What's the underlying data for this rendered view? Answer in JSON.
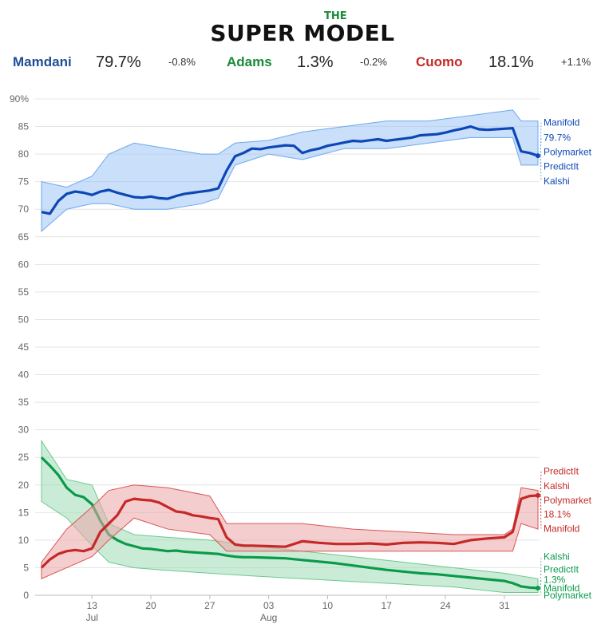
{
  "logo": {
    "the": "THE",
    "main": "SUPER MODEL"
  },
  "summary": [
    {
      "name": "Mamdani",
      "value": "79.7%",
      "change": "-0.8%",
      "color": "#1f4e96"
    },
    {
      "name": "Adams",
      "value": "1.3%",
      "change": "-0.2%",
      "color": "#1a8a3a"
    },
    {
      "name": "Cuomo",
      "value": "18.1%",
      "change": "+1.1%",
      "color": "#c62828"
    }
  ],
  "chart_data": {
    "type": "line",
    "y_unit": "%",
    "ylim": [
      0,
      92
    ],
    "yticks": [
      "0",
      "5",
      "10",
      "15",
      "20",
      "25",
      "30",
      "35",
      "40",
      "45",
      "50",
      "55",
      "60",
      "65",
      "70",
      "75",
      "80",
      "85",
      "90%"
    ],
    "xlim": [
      "2025-07-07",
      "2025-09-04"
    ],
    "xticks": [
      {
        "date": "2025-07-13",
        "day": "13",
        "month": "Jul"
      },
      {
        "date": "2025-07-20",
        "day": "20",
        "month": ""
      },
      {
        "date": "2025-07-27",
        "day": "27",
        "month": ""
      },
      {
        "date": "2025-08-03",
        "day": "03",
        "month": "Aug"
      },
      {
        "date": "2025-08-10",
        "day": "10",
        "month": ""
      },
      {
        "date": "2025-08-17",
        "day": "17",
        "month": ""
      },
      {
        "date": "2025-08-24",
        "day": "24",
        "month": ""
      },
      {
        "date": "2025-08-31",
        "day": "31",
        "month": ""
      }
    ],
    "grid": true,
    "series": [
      {
        "name": "Mamdani",
        "color": "#0d47b5",
        "band_color": "#9cc4f5",
        "line_color": "#6ea8ee",
        "points": [
          [
            "2025-07-07",
            69.5
          ],
          [
            "2025-07-08",
            69.2
          ],
          [
            "2025-07-09",
            71.5
          ],
          [
            "2025-07-10",
            72.8
          ],
          [
            "2025-07-11",
            73.2
          ],
          [
            "2025-07-12",
            73.0
          ],
          [
            "2025-07-13",
            72.6
          ],
          [
            "2025-07-14",
            73.2
          ],
          [
            "2025-07-15",
            73.5
          ],
          [
            "2025-07-16",
            73.0
          ],
          [
            "2025-07-17",
            72.6
          ],
          [
            "2025-07-18",
            72.2
          ],
          [
            "2025-07-19",
            72.1
          ],
          [
            "2025-07-20",
            72.3
          ],
          [
            "2025-07-21",
            72.0
          ],
          [
            "2025-07-22",
            71.9
          ],
          [
            "2025-07-23",
            72.4
          ],
          [
            "2025-07-24",
            72.8
          ],
          [
            "2025-07-25",
            73.0
          ],
          [
            "2025-07-26",
            73.2
          ],
          [
            "2025-07-27",
            73.4
          ],
          [
            "2025-07-28",
            73.8
          ],
          [
            "2025-07-29",
            77.0
          ],
          [
            "2025-07-30",
            79.6
          ],
          [
            "2025-07-31",
            80.2
          ],
          [
            "2025-08-01",
            81.0
          ],
          [
            "2025-08-02",
            80.9
          ],
          [
            "2025-08-03",
            81.2
          ],
          [
            "2025-08-04",
            81.4
          ],
          [
            "2025-08-05",
            81.6
          ],
          [
            "2025-08-06",
            81.5
          ],
          [
            "2025-08-07",
            80.2
          ],
          [
            "2025-08-08",
            80.7
          ],
          [
            "2025-08-09",
            81.0
          ],
          [
            "2025-08-10",
            81.5
          ],
          [
            "2025-08-11",
            81.8
          ],
          [
            "2025-08-12",
            82.1
          ],
          [
            "2025-08-13",
            82.4
          ],
          [
            "2025-08-14",
            82.3
          ],
          [
            "2025-08-15",
            82.5
          ],
          [
            "2025-08-16",
            82.7
          ],
          [
            "2025-08-17",
            82.4
          ],
          [
            "2025-08-18",
            82.6
          ],
          [
            "2025-08-19",
            82.8
          ],
          [
            "2025-08-20",
            83.0
          ],
          [
            "2025-08-21",
            83.4
          ],
          [
            "2025-08-22",
            83.5
          ],
          [
            "2025-08-23",
            83.6
          ],
          [
            "2025-08-24",
            83.9
          ],
          [
            "2025-08-25",
            84.3
          ],
          [
            "2025-08-26",
            84.6
          ],
          [
            "2025-08-27",
            85.0
          ],
          [
            "2025-08-28",
            84.5
          ],
          [
            "2025-08-29",
            84.4
          ],
          [
            "2025-08-30",
            84.5
          ],
          [
            "2025-08-31",
            84.6
          ],
          [
            "2025-09-01",
            84.7
          ],
          [
            "2025-09-02",
            80.5
          ],
          [
            "2025-09-03",
            80.2
          ],
          [
            "2025-09-04",
            79.7
          ]
        ],
        "band": [
          [
            "2025-07-07",
            66,
            75
          ],
          [
            "2025-07-10",
            70,
            74
          ],
          [
            "2025-07-13",
            71,
            76
          ],
          [
            "2025-07-15",
            71,
            80
          ],
          [
            "2025-07-18",
            70,
            82
          ],
          [
            "2025-07-22",
            70,
            81
          ],
          [
            "2025-07-26",
            71,
            80
          ],
          [
            "2025-07-28",
            72,
            80
          ],
          [
            "2025-07-30",
            78,
            82
          ],
          [
            "2025-08-03",
            80,
            82.5
          ],
          [
            "2025-08-07",
            79,
            84
          ],
          [
            "2025-08-12",
            81,
            85
          ],
          [
            "2025-08-17",
            81,
            86
          ],
          [
            "2025-08-22",
            82,
            86
          ],
          [
            "2025-08-27",
            83,
            87
          ],
          [
            "2025-09-01",
            83,
            88
          ],
          [
            "2025-09-02",
            78,
            86
          ],
          [
            "2025-09-04",
            78,
            86
          ]
        ],
        "labels": [
          {
            "text": "Manifold",
            "y": 85.7
          },
          {
            "text": "79.7%",
            "y": 83.0
          },
          {
            "text": "Polymarket",
            "y": 80.4
          },
          {
            "text": "PredictIt",
            "y": 77.8
          },
          {
            "text": "Kalshi",
            "y": 75.1
          }
        ]
      },
      {
        "name": "Adams",
        "color": "#0a9a4a",
        "band_color": "#9fdcb7",
        "line_color": "#6cc98f",
        "points": [
          [
            "2025-07-07",
            25.0
          ],
          [
            "2025-07-08",
            23.5
          ],
          [
            "2025-07-09",
            21.8
          ],
          [
            "2025-07-10",
            19.5
          ],
          [
            "2025-07-11",
            18.2
          ],
          [
            "2025-07-12",
            17.8
          ],
          [
            "2025-07-13",
            16.5
          ],
          [
            "2025-07-14",
            13.5
          ],
          [
            "2025-07-15",
            11.0
          ],
          [
            "2025-07-16",
            10.0
          ],
          [
            "2025-07-17",
            9.3
          ],
          [
            "2025-07-18",
            8.9
          ],
          [
            "2025-07-19",
            8.5
          ],
          [
            "2025-07-20",
            8.4
          ],
          [
            "2025-07-21",
            8.2
          ],
          [
            "2025-07-22",
            8.0
          ],
          [
            "2025-07-23",
            8.1
          ],
          [
            "2025-07-24",
            7.9
          ],
          [
            "2025-07-25",
            7.8
          ],
          [
            "2025-07-26",
            7.7
          ],
          [
            "2025-07-27",
            7.6
          ],
          [
            "2025-07-28",
            7.5
          ],
          [
            "2025-07-29",
            7.2
          ],
          [
            "2025-07-30",
            7.0
          ],
          [
            "2025-07-31",
            6.9
          ],
          [
            "2025-08-01",
            6.9
          ],
          [
            "2025-08-03",
            6.8
          ],
          [
            "2025-08-05",
            6.7
          ],
          [
            "2025-08-07",
            6.4
          ],
          [
            "2025-08-09",
            6.1
          ],
          [
            "2025-08-11",
            5.8
          ],
          [
            "2025-08-13",
            5.4
          ],
          [
            "2025-08-15",
            5.0
          ],
          [
            "2025-08-17",
            4.6
          ],
          [
            "2025-08-19",
            4.3
          ],
          [
            "2025-08-21",
            4.0
          ],
          [
            "2025-08-23",
            3.8
          ],
          [
            "2025-08-25",
            3.5
          ],
          [
            "2025-08-27",
            3.2
          ],
          [
            "2025-08-29",
            2.9
          ],
          [
            "2025-08-31",
            2.6
          ],
          [
            "2025-09-01",
            2.2
          ],
          [
            "2025-09-02",
            1.6
          ],
          [
            "2025-09-03",
            1.4
          ],
          [
            "2025-09-04",
            1.3
          ]
        ],
        "band": [
          [
            "2025-07-07",
            17,
            28
          ],
          [
            "2025-07-10",
            14,
            21
          ],
          [
            "2025-07-13",
            9,
            20
          ],
          [
            "2025-07-15",
            6,
            13
          ],
          [
            "2025-07-18",
            5,
            11
          ],
          [
            "2025-07-22",
            4.5,
            10.5
          ],
          [
            "2025-07-27",
            4,
            10
          ],
          [
            "2025-08-01",
            3.5,
            9
          ],
          [
            "2025-08-07",
            3,
            8
          ],
          [
            "2025-08-13",
            2.5,
            7
          ],
          [
            "2025-08-19",
            2,
            6
          ],
          [
            "2025-08-25",
            1.5,
            5
          ],
          [
            "2025-08-31",
            0.5,
            4
          ],
          [
            "2025-09-04",
            0.5,
            3
          ]
        ],
        "labels": [
          {
            "text": "Kalshi",
            "y": 7.0
          },
          {
            "text": "PredictIt",
            "y": 4.7
          },
          {
            "text": "1.3%",
            "y": 2.8
          },
          {
            "text": "Manifold",
            "y": 1.3
          },
          {
            "text": "Polymarket",
            "y": 0.0
          }
        ]
      },
      {
        "name": "Cuomo",
        "color": "#c62828",
        "band_color": "#eba5a5",
        "line_color": "#d95555",
        "points": [
          [
            "2025-07-07",
            5.0
          ],
          [
            "2025-07-08",
            6.5
          ],
          [
            "2025-07-09",
            7.5
          ],
          [
            "2025-07-10",
            8.0
          ],
          [
            "2025-07-11",
            8.2
          ],
          [
            "2025-07-12",
            8.0
          ],
          [
            "2025-07-13",
            8.5
          ],
          [
            "2025-07-14",
            11.5
          ],
          [
            "2025-07-15",
            13.0
          ],
          [
            "2025-07-16",
            14.5
          ],
          [
            "2025-07-17",
            17.0
          ],
          [
            "2025-07-18",
            17.5
          ],
          [
            "2025-07-19",
            17.3
          ],
          [
            "2025-07-20",
            17.2
          ],
          [
            "2025-07-21",
            16.8
          ],
          [
            "2025-07-22",
            16.0
          ],
          [
            "2025-07-23",
            15.2
          ],
          [
            "2025-07-24",
            15.0
          ],
          [
            "2025-07-25",
            14.5
          ],
          [
            "2025-07-26",
            14.3
          ],
          [
            "2025-07-27",
            14.0
          ],
          [
            "2025-07-28",
            13.8
          ],
          [
            "2025-07-29",
            10.5
          ],
          [
            "2025-07-30",
            9.2
          ],
          [
            "2025-07-31",
            9.0
          ],
          [
            "2025-08-01",
            9.0
          ],
          [
            "2025-08-03",
            8.9
          ],
          [
            "2025-08-05",
            8.8
          ],
          [
            "2025-08-07",
            9.8
          ],
          [
            "2025-08-09",
            9.5
          ],
          [
            "2025-08-11",
            9.3
          ],
          [
            "2025-08-13",
            9.3
          ],
          [
            "2025-08-15",
            9.4
          ],
          [
            "2025-08-17",
            9.2
          ],
          [
            "2025-08-19",
            9.5
          ],
          [
            "2025-08-21",
            9.6
          ],
          [
            "2025-08-23",
            9.5
          ],
          [
            "2025-08-25",
            9.3
          ],
          [
            "2025-08-27",
            10.0
          ],
          [
            "2025-08-29",
            10.3
          ],
          [
            "2025-08-31",
            10.5
          ],
          [
            "2025-09-01",
            11.5
          ],
          [
            "2025-09-02",
            17.5
          ],
          [
            "2025-09-03",
            18.0
          ],
          [
            "2025-09-04",
            18.1
          ]
        ],
        "band": [
          [
            "2025-07-07",
            3,
            6
          ],
          [
            "2025-07-10",
            5,
            12
          ],
          [
            "2025-07-13",
            7,
            16
          ],
          [
            "2025-07-15",
            10,
            19
          ],
          [
            "2025-07-18",
            14,
            20
          ],
          [
            "2025-07-22",
            12,
            19.5
          ],
          [
            "2025-07-27",
            11,
            18
          ],
          [
            "2025-07-29",
            8,
            13
          ],
          [
            "2025-08-03",
            8,
            13
          ],
          [
            "2025-08-07",
            8,
            13
          ],
          [
            "2025-08-13",
            8,
            12
          ],
          [
            "2025-08-19",
            8,
            11.5
          ],
          [
            "2025-08-25",
            8,
            11
          ],
          [
            "2025-08-31",
            8,
            11
          ],
          [
            "2025-09-01",
            8,
            12
          ],
          [
            "2025-09-02",
            13,
            19.5
          ],
          [
            "2025-09-04",
            12,
            19
          ]
        ],
        "labels": [
          {
            "text": "PredictIt",
            "y": 22.5
          },
          {
            "text": "Kalshi",
            "y": 19.8
          },
          {
            "text": "Polymarket",
            "y": 17.2
          },
          {
            "text": "18.1%",
            "y": 14.7
          },
          {
            "text": "Manifold",
            "y": 12.1
          }
        ]
      }
    ]
  }
}
